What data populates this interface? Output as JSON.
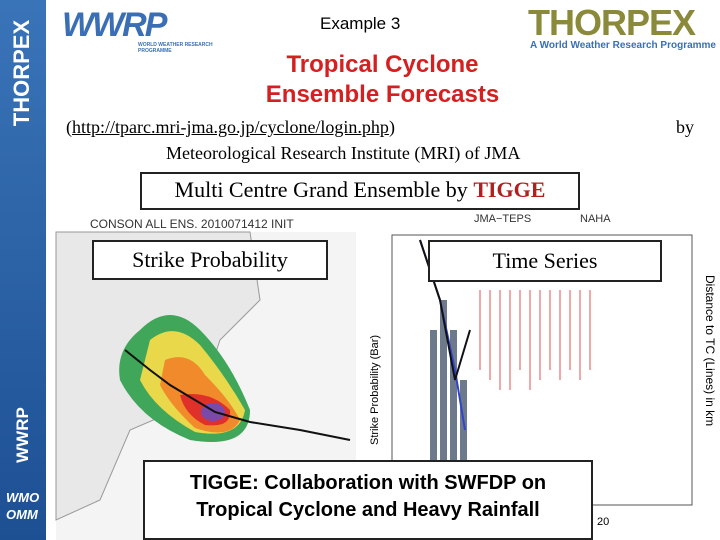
{
  "header": {
    "example": "Example 3",
    "wwrp_logo": "WWRP",
    "wwrp_sub": "WORLD WEATHER RESEARCH PROGRAMME",
    "thorpex_logo": "THORPEX",
    "thorpex_sub": "A World Weather Research Programme"
  },
  "sidebar": {
    "top": "THORPEX",
    "middle": "WWRP",
    "bottom": [
      "WMO",
      "OMM"
    ]
  },
  "title": [
    "Tropical Cyclone",
    "Ensemble Forecasts"
  ],
  "source": {
    "open": "(",
    "url": "http://tparc.mri-jma.go.jp/cyclone/login.php",
    "close": ")",
    "by": "by",
    "institute": "Meteorological Research Institute (MRI) of JMA"
  },
  "banner": {
    "text": "Multi Centre Grand Ensemble by",
    "highlight": "TIGGE"
  },
  "map": {
    "header": "CONSON   ALL  ENS.  2010071412  INIT",
    "label": "Strike Probability"
  },
  "timeseries": {
    "header": "JMA−TEPS",
    "station": "NAHA",
    "label": "Time Series",
    "y_label": "Strike Probability (Bar)",
    "y2_label": "Distance to TC (Lines) in km"
  },
  "footer": {
    "lines": [
      "TIGGE: Collaboration with SWFDP on",
      "Tropical Cyclone and Heavy Rainfall"
    ],
    "page": "20"
  }
}
